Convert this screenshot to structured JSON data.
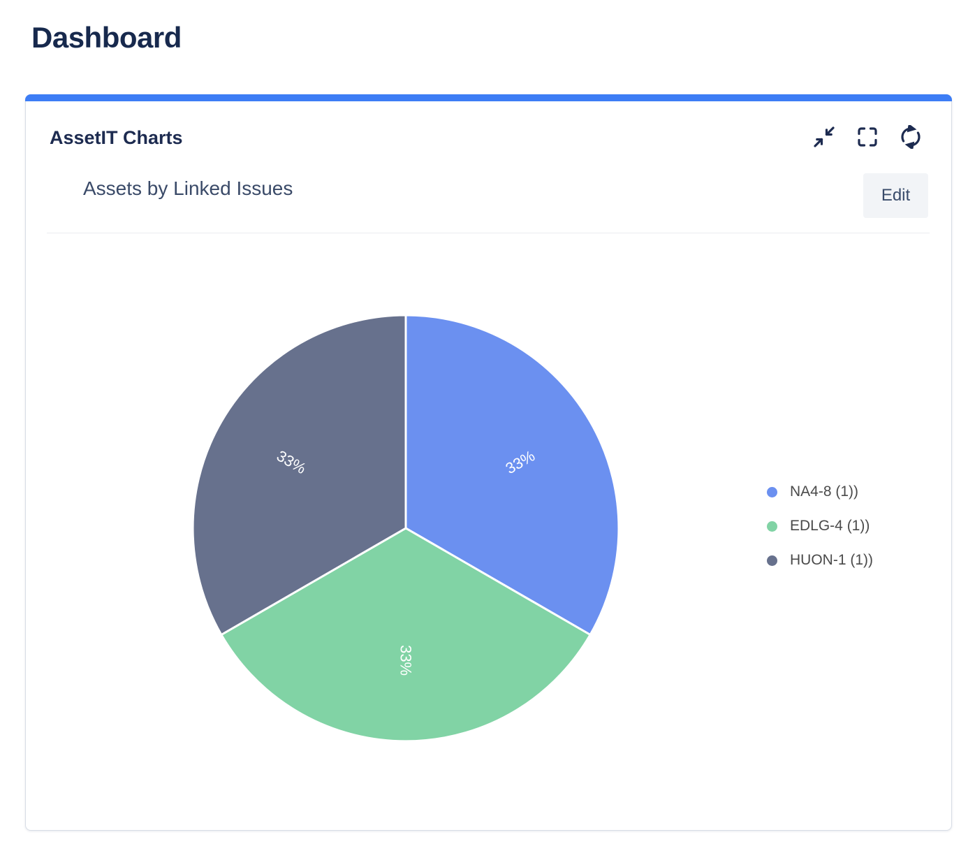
{
  "page": {
    "title": "Dashboard"
  },
  "panel": {
    "accent_color": "#3D7DF5",
    "title": "AssetIT Charts",
    "toolbar": {
      "icons": [
        "collapse",
        "fullscreen",
        "refresh"
      ]
    },
    "chart_header": {
      "title": "Assets by Linked Issues",
      "edit_label": "Edit"
    }
  },
  "chart_data": {
    "type": "pie",
    "title": "Assets by Linked Issues",
    "start_angle_deg": 0,
    "direction": "clockwise",
    "legend_position": "right",
    "percent_label_color": "#FFFFFF",
    "slices": [
      {
        "name": "NA4-8",
        "legend_label": "NA4-8 (1))",
        "value": 1,
        "percent_label": "33%",
        "color": "#6B90F0"
      },
      {
        "name": "EDLG-4",
        "legend_label": "EDLG-4 (1))",
        "value": 1,
        "percent_label": "33%",
        "color": "#81D3A5"
      },
      {
        "name": "HUON-1",
        "legend_label": "HUON-1 (1))",
        "value": 1,
        "percent_label": "33%",
        "color": "#67718D"
      }
    ]
  }
}
